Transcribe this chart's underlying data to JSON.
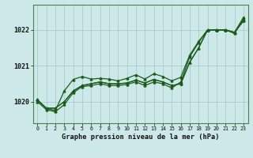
{
  "title": "Graphe pression niveau de la mer (hPa)",
  "bg_color": "#cce8e8",
  "grid_color": "#aacaca",
  "line_color": "#1a5c1a",
  "x_min": -0.5,
  "x_max": 23.5,
  "y_min": 1019.4,
  "y_max": 1022.7,
  "yticks": [
    1020,
    1021,
    1022
  ],
  "xticks": [
    0,
    1,
    2,
    3,
    4,
    5,
    6,
    7,
    8,
    9,
    10,
    11,
    12,
    13,
    14,
    15,
    16,
    17,
    18,
    19,
    20,
    21,
    22,
    23
  ],
  "series1": [
    1020.05,
    1019.82,
    1019.82,
    1020.0,
    1020.3,
    1020.45,
    1020.5,
    1020.55,
    1020.5,
    1020.5,
    1020.52,
    1020.6,
    1020.52,
    1020.62,
    1020.55,
    1020.45,
    1020.5,
    1021.1,
    1021.5,
    1022.0,
    1022.0,
    1022.0,
    1021.93,
    1022.25
  ],
  "series2": [
    1020.05,
    1019.82,
    1019.75,
    1020.3,
    1020.62,
    1020.7,
    1020.63,
    1020.65,
    1020.63,
    1020.58,
    1020.65,
    1020.75,
    1020.63,
    1020.78,
    1020.7,
    1020.58,
    1020.68,
    1021.3,
    1021.68,
    1022.0,
    1022.0,
    1022.0,
    1021.93,
    1022.35
  ],
  "series3": [
    1020.05,
    1019.82,
    1019.82,
    1020.0,
    1020.3,
    1020.45,
    1020.5,
    1020.55,
    1020.5,
    1020.5,
    1020.52,
    1020.6,
    1020.52,
    1020.62,
    1020.55,
    1020.45,
    1020.5,
    1021.1,
    1021.5,
    1022.0,
    1022.0,
    1022.0,
    1021.93,
    1022.25
  ],
  "series4": [
    1020.0,
    1019.78,
    1019.72,
    1019.92,
    1020.25,
    1020.42,
    1020.45,
    1020.5,
    1020.45,
    1020.45,
    1020.48,
    1020.55,
    1020.45,
    1020.55,
    1020.5,
    1020.38,
    1020.55,
    1021.25,
    1021.65,
    1022.0,
    1022.0,
    1022.0,
    1021.9,
    1022.3
  ],
  "fig_width": 3.2,
  "fig_height": 2.0,
  "dpi": 100
}
